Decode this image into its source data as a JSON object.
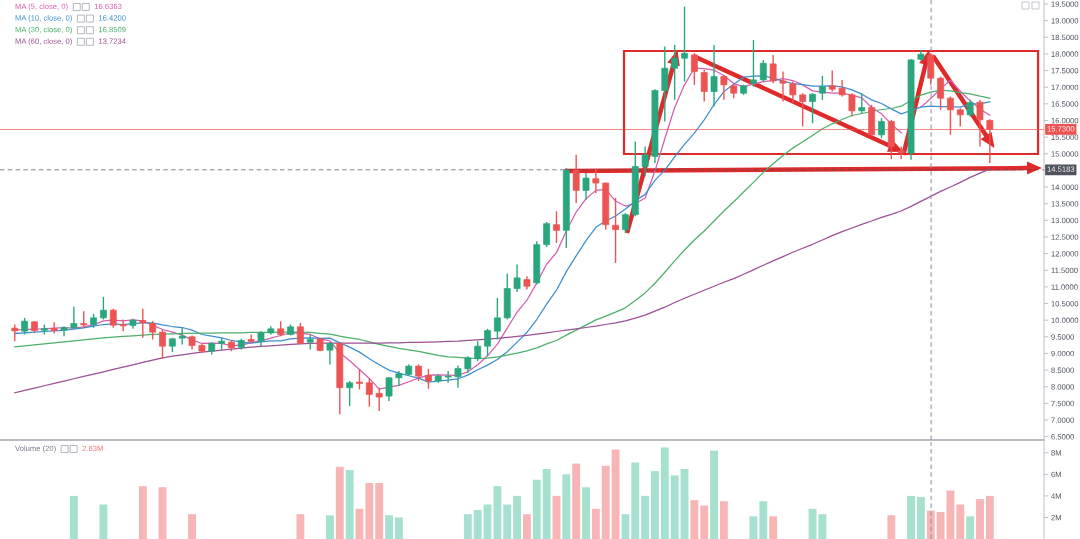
{
  "chart_data": [
    {
      "type": "candlestick",
      "categories": [
        null,
        null,
        null,
        null,
        null,
        null,
        null,
        null,
        null,
        null,
        null,
        null,
        null,
        null,
        null,
        null,
        null,
        null,
        null,
        null,
        null,
        null,
        null,
        null,
        null,
        null,
        null,
        null,
        null,
        null,
        null,
        null,
        null,
        null,
        null,
        null,
        null,
        null,
        null,
        null,
        null,
        null,
        null,
        null,
        null,
        null,
        null,
        null,
        null,
        null,
        null,
        null,
        null,
        null,
        null,
        null,
        null,
        null,
        null,
        null,
        null,
        null,
        null,
        null,
        null,
        null,
        null,
        null,
        null,
        null,
        null,
        null,
        null,
        null,
        null,
        null,
        null,
        null,
        null,
        null,
        null,
        null,
        null,
        null,
        null,
        null,
        null,
        null,
        null,
        null,
        null,
        null,
        null,
        null,
        null,
        null,
        null,
        null,
        null,
        null,
        null,
        null,
        null,
        null,
        null,
        null
      ],
      "ohlc": [
        null,
        [
          9.76,
          9.87,
          9.37,
          9.68
        ],
        [
          9.67,
          10.07,
          9.57,
          9.97
        ],
        [
          9.95,
          9.97,
          9.62,
          9.69
        ],
        [
          9.7,
          9.87,
          9.57,
          9.75
        ],
        [
          9.75,
          9.94,
          9.6,
          9.69
        ],
        [
          9.7,
          9.82,
          9.52,
          9.78
        ],
        [
          9.77,
          10.4,
          9.74,
          9.9
        ],
        [
          9.9,
          10.27,
          9.77,
          9.86
        ],
        [
          9.87,
          10.19,
          9.77,
          10.07
        ],
        [
          10.07,
          10.7,
          10.02,
          10.3
        ],
        [
          10.3,
          10.34,
          9.77,
          9.85
        ],
        [
          9.87,
          10.02,
          9.67,
          9.83
        ],
        [
          9.84,
          10.04,
          9.74,
          10.0
        ],
        [
          9.99,
          10.34,
          9.47,
          9.92
        ],
        [
          9.9,
          9.97,
          9.42,
          9.64
        ],
        [
          9.64,
          9.72,
          8.84,
          9.22
        ],
        [
          9.22,
          9.47,
          9.04,
          9.44
        ],
        [
          9.46,
          9.77,
          9.27,
          9.52
        ],
        [
          9.5,
          9.54,
          9.12,
          9.24
        ],
        [
          9.24,
          9.3,
          9.04,
          9.07
        ],
        [
          9.07,
          9.34,
          8.97,
          9.3
        ],
        [
          9.3,
          9.47,
          9.12,
          9.37
        ],
        [
          9.34,
          9.4,
          9.07,
          9.17
        ],
        [
          9.19,
          9.44,
          9.12,
          9.39
        ],
        [
          9.42,
          9.57,
          9.32,
          9.36
        ],
        [
          9.37,
          9.67,
          9.22,
          9.62
        ],
        [
          9.62,
          9.82,
          9.57,
          9.74
        ],
        [
          9.74,
          9.97,
          9.52,
          9.57
        ],
        [
          9.57,
          9.87,
          9.54,
          9.8
        ],
        [
          9.8,
          9.92,
          9.3,
          9.3
        ],
        [
          9.34,
          9.57,
          9.12,
          9.42
        ],
        [
          9.44,
          9.47,
          9.07,
          9.09
        ],
        [
          9.1,
          9.34,
          8.67,
          9.3
        ],
        [
          9.3,
          9.32,
          7.17,
          7.97
        ],
        [
          7.97,
          8.17,
          7.42,
          8.12
        ],
        [
          8.14,
          8.52,
          7.92,
          8.1
        ],
        [
          8.12,
          8.24,
          7.4,
          7.77
        ],
        [
          7.8,
          7.97,
          7.27,
          7.69
        ],
        [
          7.72,
          8.29,
          7.57,
          8.27
        ],
        [
          8.27,
          8.47,
          8.02,
          8.39
        ],
        [
          8.37,
          8.67,
          8.32,
          8.62
        ],
        [
          8.62,
          8.67,
          8.17,
          8.32
        ],
        [
          8.34,
          8.54,
          7.94,
          8.17
        ],
        [
          8.17,
          8.37,
          8.12,
          8.32
        ],
        [
          8.29,
          8.47,
          8.12,
          8.32
        ],
        [
          8.3,
          8.64,
          7.97,
          8.55
        ],
        [
          8.54,
          8.92,
          8.42,
          8.87
        ],
        [
          8.84,
          9.37,
          8.77,
          9.22
        ],
        [
          9.22,
          9.74,
          8.92,
          9.69
        ],
        [
          9.67,
          10.67,
          9.42,
          10.07
        ],
        [
          10.07,
          11.4,
          10.02,
          10.95
        ],
        [
          10.95,
          11.67,
          10.85,
          11.27
        ],
        [
          11.22,
          11.32,
          10.92,
          11.02
        ],
        [
          11.12,
          12.37,
          11.07,
          12.27
        ],
        [
          12.27,
          12.95,
          12.2,
          12.9
        ],
        [
          12.87,
          13.27,
          12.32,
          12.7
        ],
        [
          12.7,
          14.57,
          12.17,
          14.5
        ],
        [
          14.5,
          14.97,
          13.52,
          13.9
        ],
        [
          13.9,
          14.42,
          13.62,
          14.27
        ],
        [
          14.25,
          14.54,
          13.82,
          14.12
        ],
        [
          14.12,
          14.14,
          12.72,
          12.87
        ],
        [
          12.85,
          13.67,
          11.72,
          12.72
        ],
        [
          12.72,
          13.22,
          12.62,
          13.17
        ],
        [
          13.17,
          15.37,
          13.12,
          14.62
        ],
        [
          14.62,
          15.22,
          14.32,
          14.97
        ],
        [
          14.92,
          16.94,
          14.72,
          16.9
        ],
        [
          16.9,
          18.22,
          15.97,
          17.57
        ],
        [
          17.57,
          18.27,
          16.62,
          17.87
        ],
        [
          17.87,
          19.42,
          17.17,
          18.02
        ],
        [
          17.97,
          18.02,
          17.07,
          17.47
        ],
        [
          17.44,
          17.52,
          16.57,
          16.87
        ],
        [
          16.87,
          18.27,
          16.42,
          17.32
        ],
        [
          17.32,
          17.37,
          16.62,
          17.07
        ],
        [
          17.04,
          17.12,
          16.67,
          16.82
        ],
        [
          16.82,
          17.07,
          16.77,
          17.04
        ],
        [
          17.12,
          18.42,
          17.02,
          17.22
        ],
        [
          17.22,
          17.82,
          17.17,
          17.72
        ],
        [
          17.7,
          17.97,
          17.12,
          17.19
        ],
        [
          17.19,
          17.47,
          16.57,
          17.12
        ],
        [
          17.1,
          17.17,
          16.52,
          16.77
        ],
        [
          16.77,
          16.82,
          15.82,
          16.57
        ],
        [
          16.57,
          16.82,
          15.92,
          16.79
        ],
        [
          16.82,
          17.34,
          16.62,
          17.02
        ],
        [
          17.04,
          17.5,
          16.87,
          16.94
        ],
        [
          16.97,
          17.22,
          16.72,
          16.77
        ],
        [
          16.77,
          16.82,
          16.12,
          16.29
        ],
        [
          16.29,
          16.82,
          16.22,
          16.39
        ],
        [
          16.39,
          16.47,
          15.52,
          15.57
        ],
        [
          15.57,
          16.07,
          15.47,
          15.97
        ],
        [
          15.97,
          16.02,
          14.84,
          15.22
        ],
        [
          15.09,
          15.22,
          14.84,
          15.02
        ],
        [
          15.02,
          17.84,
          14.82,
          17.82
        ],
        [
          17.84,
          18.12,
          17.8,
          17.99
        ],
        [
          17.97,
          18.02,
          17.07,
          17.27
        ],
        [
          17.27,
          17.32,
          16.32,
          16.67
        ],
        [
          16.67,
          16.72,
          15.57,
          16.32
        ],
        [
          16.32,
          16.37,
          15.82,
          16.17
        ],
        [
          16.17,
          16.62,
          16.12,
          16.54
        ],
        [
          16.55,
          16.62,
          15.22,
          16.02
        ],
        [
          16.0,
          16.04,
          14.72,
          15.73
        ],
        null,
        null,
        null,
        null,
        null
      ],
      "colors": [
        null,
        "#ec5454",
        "#2aa67e",
        "#ec5454",
        "#2aa67e",
        "#ec5454",
        "#2aa67e",
        "#2aa67e",
        "#ec5454",
        "#2aa67e",
        "#2aa67e",
        "#ec5454",
        "#ec5454",
        "#2aa67e",
        "#ec5454",
        "#ec5454",
        "#ec5454",
        "#2aa67e",
        "#2aa67e",
        "#ec5454",
        "#ec5454",
        "#2aa67e",
        "#2aa67e",
        "#ec5454",
        "#2aa67e",
        "#ec5454",
        "#2aa67e",
        "#2aa67e",
        "#ec5454",
        "#2aa67e",
        "#ec5454",
        "#2aa67e",
        "#ec5454",
        "#2aa67e",
        "#ec5454",
        "#2aa67e",
        "#ec5454",
        "#ec5454",
        "#ec5454",
        "#2aa67e",
        "#2aa67e",
        "#2aa67e",
        "#ec5454",
        "#ec5454",
        "#2aa67e",
        "#2aa67e",
        "#2aa67e",
        "#2aa67e",
        "#2aa67e",
        "#2aa67e",
        "#2aa67e",
        "#2aa67e",
        "#2aa67e",
        "#ec5454",
        "#2aa67e",
        "#2aa67e",
        "#ec5454",
        "#2aa67e",
        "#ec5454",
        "#2aa67e",
        "#ec5454",
        "#ec5454",
        "#ec5454",
        "#2aa67e",
        "#2aa67e",
        "#2aa67e",
        "#2aa67e",
        "#2aa67e",
        "#2aa67e",
        "#2aa67e",
        "#ec5454",
        "#ec5454",
        "#2aa67e",
        "#ec5454",
        "#ec5454",
        "#2aa67e",
        "#2aa67e",
        "#2aa67e",
        "#ec5454",
        "#ec5454",
        "#ec5454",
        "#ec5454",
        "#2aa67e",
        "#2aa67e",
        "#ec5454",
        "#ec5454",
        "#ec5454",
        "#2aa67e",
        "#ec5454",
        "#2aa67e",
        "#ec5454",
        "#ec5454",
        "#2aa67e",
        "#2aa67e",
        "#ec5454",
        "#ec5454",
        "#ec5454",
        "#ec5454",
        "#2aa67e",
        "#ec5454",
        "#ec5454",
        null,
        null,
        null,
        null,
        null
      ],
      "series": [
        {
          "name": "MA (5, close, 0)",
          "type": "line",
          "color": "#d65db1",
          "values": [
            null,
            9.7,
            9.72,
            9.73,
            9.74,
            9.76,
            9.78,
            9.76,
            9.8,
            9.86,
            9.98,
            10.0,
            9.98,
            10.01,
            9.98,
            9.85,
            9.72,
            9.64,
            9.55,
            9.41,
            9.3,
            9.31,
            9.3,
            9.23,
            9.26,
            9.32,
            9.38,
            9.46,
            9.54,
            9.62,
            9.61,
            9.57,
            9.44,
            9.38,
            9.02,
            8.78,
            8.52,
            8.25,
            7.93,
            7.99,
            8.04,
            8.15,
            8.26,
            8.35,
            8.36,
            8.35,
            8.34,
            8.45,
            8.66,
            8.93,
            9.28,
            9.76,
            10.24,
            10.6,
            11.12,
            11.68,
            12.03,
            12.68,
            13.25,
            13.65,
            13.9,
            13.93,
            13.58,
            13.43,
            13.5,
            13.67,
            14.48,
            15.45,
            16.39,
            17.07,
            17.57,
            17.56,
            17.51,
            17.35,
            17.11,
            17.02,
            17.09,
            17.17,
            17.2,
            17.26,
            17.2,
            17.07,
            16.89,
            16.85,
            16.82,
            16.82,
            16.76,
            16.68,
            16.39,
            16.2,
            15.89,
            15.63,
            null,
            16.4,
            16.66,
            16.95,
            17.21,
            16.88,
            16.59,
            16.34,
            16.16,
            null,
            null,
            null,
            null,
            null
          ]
        },
        {
          "name": "MA (10, close, 0)",
          "type": "line",
          "color": "#3d8fd1",
          "values": [
            null,
            9.6,
            9.62,
            9.64,
            9.66,
            9.68,
            9.7,
            9.73,
            9.77,
            9.82,
            9.87,
            9.89,
            9.87,
            9.9,
            9.92,
            9.92,
            9.86,
            9.81,
            9.78,
            9.7,
            9.57,
            9.52,
            9.47,
            9.39,
            9.34,
            9.31,
            9.35,
            9.38,
            9.38,
            9.44,
            9.46,
            9.47,
            9.45,
            9.46,
            9.32,
            9.19,
            9.04,
            8.84,
            8.66,
            8.5,
            8.41,
            8.33,
            8.26,
            8.14,
            8.18,
            8.2,
            8.24,
            8.35,
            8.51,
            8.65,
            8.82,
            9.05,
            9.34,
            9.63,
            10.02,
            10.48,
            10.9,
            11.46,
            11.93,
            12.39,
            12.79,
            12.98,
            13.13,
            13.34,
            13.58,
            13.78,
            14.2,
            14.51,
            14.91,
            15.28,
            15.62,
            16.02,
            16.48,
            16.87,
            17.09,
            17.3,
            17.33,
            17.34,
            17.27,
            17.18,
            17.11,
            17.08,
            17.03,
            17.03,
            17.04,
            17.01,
            16.92,
            16.79,
            16.62,
            16.51,
            16.35,
            16.2,
            16.3,
            16.4,
            16.43,
            16.42,
            16.42,
            16.4,
            16.5,
            16.5,
            16.56,
            null,
            null,
            null,
            null,
            null
          ]
        },
        {
          "name": "MA (30, close, 0)",
          "type": "line",
          "color": "#4caf6a",
          "values": [
            null,
            9.2,
            9.23,
            9.26,
            9.29,
            9.32,
            9.35,
            9.38,
            9.41,
            9.44,
            9.47,
            9.49,
            9.51,
            9.53,
            9.55,
            9.57,
            9.58,
            9.59,
            9.6,
            9.6,
            9.61,
            9.61,
            9.62,
            9.62,
            9.62,
            9.63,
            9.63,
            9.63,
            9.64,
            9.64,
            9.64,
            9.63,
            9.6,
            9.58,
            9.52,
            9.47,
            9.42,
            9.35,
            9.27,
            9.21,
            9.15,
            9.11,
            9.06,
            9.0,
            8.94,
            8.9,
            8.88,
            8.86,
            8.85,
            8.86,
            8.9,
            8.95,
            9.01,
            9.08,
            9.17,
            9.29,
            9.39,
            9.55,
            9.7,
            9.85,
            10.01,
            10.12,
            10.24,
            10.37,
            10.59,
            10.82,
            11.11,
            11.44,
            11.78,
            12.11,
            12.41,
            12.68,
            12.98,
            13.28,
            13.56,
            13.85,
            14.14,
            14.44,
            14.7,
            14.95,
            15.17,
            15.36,
            15.55,
            15.75,
            15.9,
            16.03,
            16.15,
            16.21,
            16.27,
            16.33,
            16.36,
            16.43,
            16.6,
            16.76,
            16.85,
            16.91,
            16.89,
            16.84,
            16.8,
            16.73,
            16.67,
            null,
            null,
            null,
            null,
            null
          ]
        },
        {
          "name": "MA (60, close, 0)",
          "type": "line",
          "color": "#9c4f96",
          "values": [
            null,
            7.82,
            7.89,
            7.96,
            8.03,
            8.1,
            8.17,
            8.24,
            8.31,
            8.38,
            8.45,
            8.52,
            8.59,
            8.66,
            8.73,
            8.8,
            8.87,
            8.92,
            8.96,
            9.0,
            9.04,
            9.07,
            9.1,
            9.13,
            9.16,
            9.19,
            9.21,
            9.23,
            9.25,
            9.27,
            9.29,
            9.3,
            9.31,
            9.31,
            9.31,
            9.31,
            9.31,
            9.31,
            9.31,
            9.32,
            9.32,
            9.33,
            9.33,
            9.34,
            9.35,
            9.36,
            9.37,
            9.39,
            9.41,
            9.43,
            9.45,
            9.48,
            9.51,
            9.54,
            9.58,
            9.62,
            9.66,
            9.7,
            9.74,
            9.78,
            9.82,
            9.87,
            9.92,
            9.98,
            10.06,
            10.15,
            10.27,
            10.39,
            10.53,
            10.66,
            10.78,
            10.9,
            11.02,
            11.14,
            11.25,
            11.38,
            11.51,
            11.65,
            11.78,
            11.91,
            12.04,
            12.16,
            12.28,
            12.41,
            12.54,
            12.66,
            12.77,
            12.88,
            12.98,
            13.09,
            13.18,
            13.28,
            13.42,
            13.57,
            13.72,
            13.87,
            14.0,
            14.14,
            14.29,
            14.42,
            14.54,
            null,
            null,
            null,
            null,
            null
          ]
        }
      ],
      "annotations": [
        "16.6363",
        "16.4200",
        "16.8509",
        "13.7234"
      ],
      "legend": "top left",
      "tick_labels": "y",
      "ylim": [
        6.4,
        19.62
      ],
      "yticks": [
        {
          "value": 6.5,
          "label": "6.5000"
        },
        {
          "value": 7.0,
          "label": "7.0000"
        },
        {
          "value": 7.5,
          "label": "7.5000"
        },
        {
          "value": 8.0,
          "label": "8.0000"
        },
        {
          "value": 8.5,
          "label": "8.5000"
        },
        {
          "value": 9.0,
          "label": "9.0000"
        },
        {
          "value": 9.5,
          "label": "9.5000"
        },
        {
          "value": 10.0,
          "label": "10.0000"
        },
        {
          "value": 10.5,
          "label": "10.5000"
        },
        {
          "value": 11.0,
          "label": "11.0000"
        },
        {
          "value": 11.5,
          "label": "11.5000"
        },
        {
          "value": 12.0,
          "label": "12.0000"
        },
        {
          "value": 12.5,
          "label": "12.5000"
        },
        {
          "value": 13.0,
          "label": "13.0000"
        },
        {
          "value": 13.5,
          "label": "13.5000"
        },
        {
          "value": 14.0,
          "label": "14.0000"
        },
        {
          "value": 14.5,
          "label": null
        },
        {
          "value": 15.0,
          "label": "15.0000"
        },
        {
          "value": 15.5,
          "label": "15.5000"
        },
        {
          "value": 16.0,
          "label": "16.0000"
        },
        {
          "value": 16.5,
          "label": "16.5000"
        },
        {
          "value": 17.0,
          "label": "17.0000"
        },
        {
          "value": 17.5,
          "label": "17.5000"
        },
        {
          "value": 18.0,
          "label": "18.0000"
        },
        {
          "value": 18.5,
          "label": "18.5000"
        },
        {
          "value": 19.0,
          "label": "19.0000"
        },
        {
          "value": 19.5,
          "label": "19.5000"
        }
      ],
      "ref_lines": [
        {
          "axis": "y",
          "value": 15.73,
          "label": "15.7300",
          "color": "#ef5350"
        },
        {
          "axis": "y",
          "value": 14.5183,
          "label": "14.5183",
          "color": "#50535e",
          "line_style": "dashed"
        }
      ]
    },
    {
      "type": "bar",
      "title": "Volume (20)",
      "categories": [
        null,
        null,
        null,
        null,
        null,
        null,
        null,
        null,
        null,
        null,
        null,
        null,
        null,
        null,
        null,
        null,
        null,
        null,
        null,
        null,
        null,
        null,
        null,
        null,
        null,
        null,
        null,
        null,
        null,
        null,
        null,
        null,
        null,
        null,
        null,
        null,
        null,
        null,
        null,
        null,
        null,
        null,
        null,
        null,
        null,
        null,
        null,
        null,
        null,
        null,
        null,
        null,
        null,
        null,
        null,
        null,
        null,
        null,
        null,
        null,
        null,
        null,
        null,
        null,
        null,
        null,
        null,
        null,
        null,
        null,
        null,
        null,
        null,
        null,
        null,
        null,
        null,
        null,
        null,
        null,
        null,
        null,
        null,
        null,
        null,
        null,
        null,
        null,
        null,
        null,
        null,
        null,
        null,
        null,
        null,
        null,
        null,
        null,
        null,
        null,
        null,
        null,
        null,
        null,
        null,
        null
      ],
      "values": [
        null,
        null,
        null,
        null,
        null,
        null,
        null,
        4.0,
        null,
        null,
        3.2,
        null,
        null,
        null,
        4.9,
        null,
        4.8,
        null,
        null,
        2.3,
        null,
        null,
        null,
        null,
        null,
        null,
        null,
        null,
        null,
        null,
        2.3,
        null,
        null,
        2.2,
        6.7,
        6.4,
        2.8,
        5.2,
        5.2,
        2.2,
        2.0,
        null,
        null,
        null,
        null,
        null,
        null,
        2.3,
        2.7,
        3.2,
        4.9,
        3.2,
        4.0,
        2.3,
        5.5,
        6.5,
        4.0,
        6.0,
        7.0,
        4.8,
        2.8,
        6.8,
        8.3,
        2.3,
        7.1,
        4.0,
        6.3,
        8.5,
        5.9,
        6.5,
        3.6,
        3.1,
        8.2,
        3.5,
        null,
        null,
        2.1,
        3.5,
        2.1,
        null,
        null,
        null,
        2.8,
        2.3,
        null,
        null,
        null,
        null,
        null,
        null,
        2.2,
        null,
        4.0,
        3.9,
        2.63,
        2.5,
        4.5,
        3.2,
        2.1,
        3.7,
        4.0,
        null,
        null,
        null,
        null,
        null
      ],
      "colors": [
        null,
        "#f7b5b5",
        "#a6e0cf",
        "#f7b5b5",
        "#a6e0cf",
        "#f7b5b5",
        "#a6e0cf",
        "#a6e0cf",
        "#f7b5b5",
        "#a6e0cf",
        "#a6e0cf",
        "#f7b5b5",
        "#f7b5b5",
        "#a6e0cf",
        "#f7b5b5",
        "#f7b5b5",
        "#f7b5b5",
        "#a6e0cf",
        "#a6e0cf",
        "#f7b5b5",
        "#f7b5b5",
        "#a6e0cf",
        "#a6e0cf",
        "#f7b5b5",
        "#a6e0cf",
        "#f7b5b5",
        "#a6e0cf",
        "#a6e0cf",
        "#f7b5b5",
        "#a6e0cf",
        "#f7b5b5",
        "#a6e0cf",
        "#f7b5b5",
        "#a6e0cf",
        "#f7b5b5",
        "#a6e0cf",
        "#f7b5b5",
        "#f7b5b5",
        "#f7b5b5",
        "#a6e0cf",
        "#a6e0cf",
        "#a6e0cf",
        "#f7b5b5",
        "#f7b5b5",
        "#a6e0cf",
        "#a6e0cf",
        "#a6e0cf",
        "#a6e0cf",
        "#a6e0cf",
        "#a6e0cf",
        "#a6e0cf",
        "#a6e0cf",
        "#a6e0cf",
        "#f7b5b5",
        "#a6e0cf",
        "#a6e0cf",
        "#f7b5b5",
        "#a6e0cf",
        "#f7b5b5",
        "#a6e0cf",
        "#f7b5b5",
        "#f7b5b5",
        "#f7b5b5",
        "#a6e0cf",
        "#a6e0cf",
        "#a6e0cf",
        "#a6e0cf",
        "#a6e0cf",
        "#a6e0cf",
        "#a6e0cf",
        "#f7b5b5",
        "#f7b5b5",
        "#a6e0cf",
        "#f7b5b5",
        "#f7b5b5",
        "#a6e0cf",
        "#a6e0cf",
        "#a6e0cf",
        "#f7b5b5",
        "#f7b5b5",
        "#f7b5b5",
        "#f7b5b5",
        "#a6e0cf",
        "#a6e0cf",
        "#f7b5b5",
        "#f7b5b5",
        "#f7b5b5",
        "#a6e0cf",
        "#f7b5b5",
        "#a6e0cf",
        "#f7b5b5",
        "#f7b5b5",
        "#a6e0cf",
        "#a6e0cf",
        "#f7b5b5",
        "#f7b5b5",
        "#f7b5b5",
        "#f7b5b5",
        "#a6e0cf",
        "#f7b5b5",
        "#f7b5b5",
        null,
        null,
        null,
        null,
        null
      ],
      "annotations": [
        "2.63M"
      ],
      "tick_labels": "y",
      "ylim": [
        0,
        9.0
      ],
      "yticks": [
        {
          "value": 2,
          "label": "2M"
        },
        {
          "value": 4,
          "label": "4M"
        },
        {
          "value": 6,
          "label": "6M"
        },
        {
          "value": 8,
          "label": "8M"
        }
      ]
    }
  ]
}
